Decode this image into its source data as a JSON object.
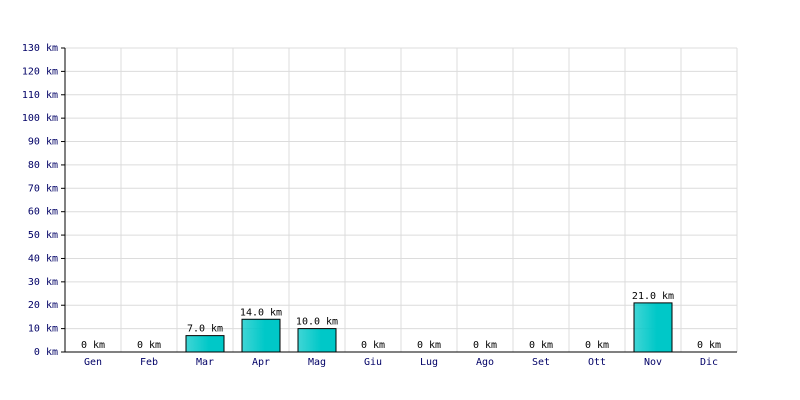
{
  "chart_data": {
    "type": "bar",
    "categories": [
      "Gen",
      "Feb",
      "Mar",
      "Apr",
      "Mag",
      "Giu",
      "Lug",
      "Ago",
      "Set",
      "Ott",
      "Nov",
      "Dic"
    ],
    "values": [
      0,
      0,
      7,
      14,
      10,
      0,
      0,
      0,
      0,
      0,
      21,
      0
    ],
    "value_labels": [
      "0 km",
      "0 km",
      "7.0 km",
      "14.0 km",
      "10.0 km",
      "0 km",
      "0 km",
      "0 km",
      "0 km",
      "0 km",
      "21.0 km",
      "0 km"
    ],
    "color": "#00c8c8",
    "ylim": [
      0,
      130
    ],
    "yticks": [
      {
        "value": 0,
        "label": "0 km"
      },
      {
        "value": 10,
        "label": "10 km"
      },
      {
        "value": 20,
        "label": "20 km"
      },
      {
        "value": 30,
        "label": "30 km"
      },
      {
        "value": 40,
        "label": "40 km"
      },
      {
        "value": 50,
        "label": "50 km"
      },
      {
        "value": 60,
        "label": "60 km"
      },
      {
        "value": 70,
        "label": "70 km"
      },
      {
        "value": 80,
        "label": "80 km"
      },
      {
        "value": 90,
        "label": "90 km"
      },
      {
        "value": 100,
        "label": "100 km"
      },
      {
        "value": 110,
        "label": "110 km"
      },
      {
        "value": 120,
        "label": "120 km"
      },
      {
        "value": 130,
        "label": "130 km"
      }
    ],
    "grid": true
  }
}
